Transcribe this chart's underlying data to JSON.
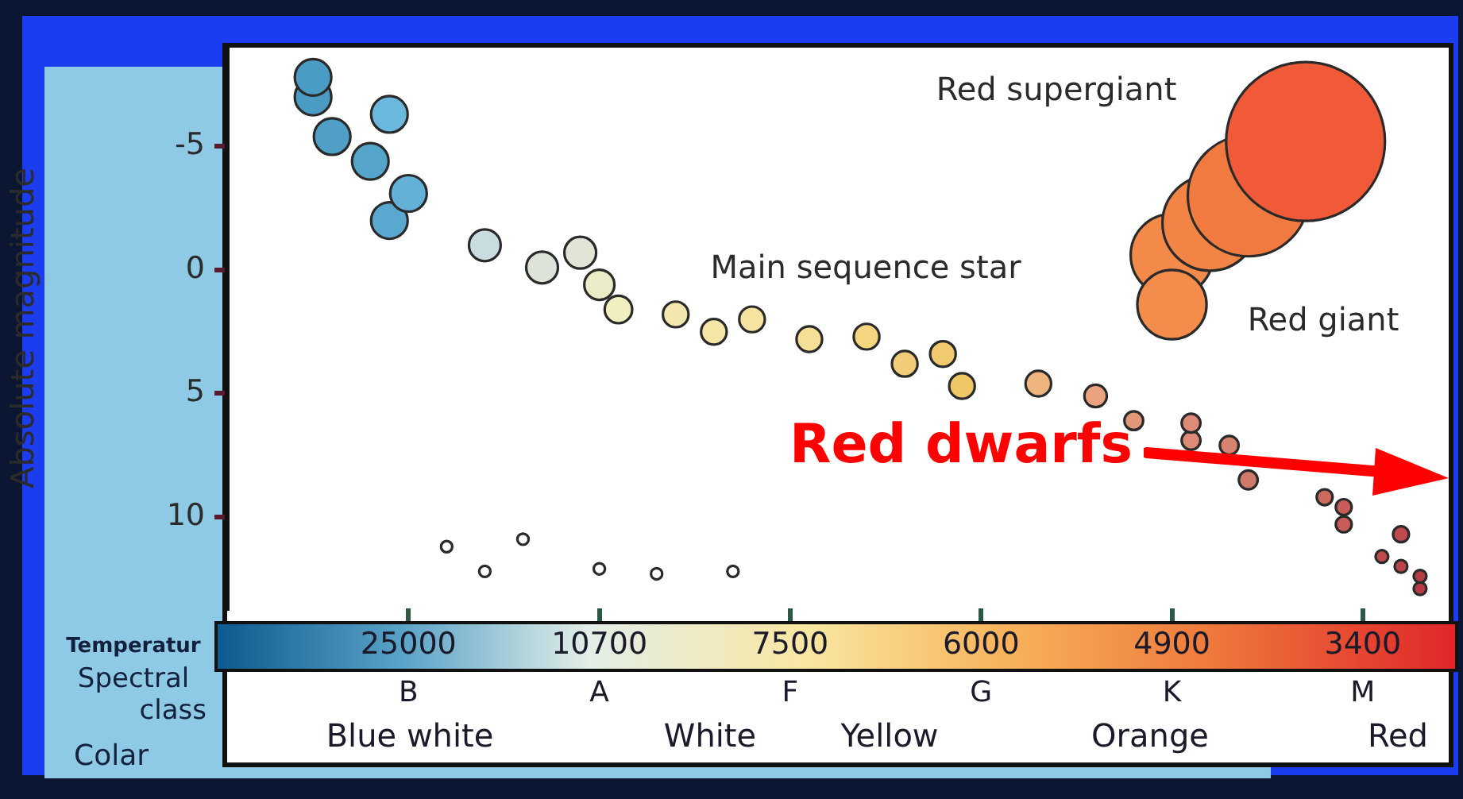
{
  "chart_data": {
    "type": "bubble",
    "ylabel": "Absolute magnitude",
    "xlabel": "Temperatur",
    "categories": [
      null,
      null,
      null,
      null,
      null,
      null,
      null,
      null,
      null,
      "25000",
      null,
      null,
      null,
      null,
      null,
      null,
      null,
      null,
      null,
      "10700",
      null,
      null,
      null,
      null,
      null,
      null,
      null,
      null,
      null,
      "7500",
      null,
      null,
      null,
      null,
      null,
      null,
      null,
      null,
      null,
      "6000",
      null,
      null,
      null,
      null,
      null,
      null,
      null,
      null,
      null,
      "4900",
      null,
      null,
      null,
      null,
      null,
      null,
      null,
      null,
      null,
      "3400",
      null,
      null,
      null,
      null
    ],
    "ylim": [
      13.7,
      -9
    ],
    "yticks": [
      -5,
      0,
      5,
      10
    ],
    "series": [
      {
        "values": [
          null,
          null,
          null,
          null,
          -7.8,
          -5.4,
          null,
          -4.4,
          -6.3,
          -3.1,
          null,
          null,
          null,
          -1.0,
          null,
          null,
          -0.1,
          null,
          -0.7,
          0.6,
          1.6,
          null,
          null,
          1.8,
          null,
          2.5,
          null,
          2.0,
          null,
          null,
          2.8,
          null,
          null,
          2.7,
          null,
          3.8,
          null,
          3.4,
          4.7,
          null,
          null,
          null,
          4.6,
          null,
          null,
          5.1,
          null,
          6.1,
          null,
          null,
          6.2,
          null,
          7.1,
          8.5,
          null,
          null,
          null,
          9.2,
          9.6,
          null,
          11.6,
          10.7,
          12.4,
          null
        ],
        "sizes": [
          null,
          null,
          null,
          null,
          0.053,
          0.053,
          null,
          0.053,
          0.053,
          0.053,
          null,
          null,
          null,
          0.04,
          null,
          null,
          0.04,
          null,
          0.04,
          0.036,
          0.03,
          null,
          null,
          0.026,
          null,
          0.026,
          null,
          0.026,
          null,
          null,
          0.026,
          null,
          null,
          0.026,
          null,
          0.026,
          null,
          0.026,
          0.026,
          null,
          null,
          null,
          0.026,
          null,
          null,
          0.02,
          null,
          0.014,
          null,
          null,
          0.014,
          null,
          0.014,
          0.014,
          null,
          null,
          null,
          0.01,
          0.01,
          null,
          0.0064,
          0.01,
          0.0064,
          null
        ],
        "colors": [
          null,
          null,
          null,
          null,
          "#4b9cc4",
          "#4f9fc6",
          null,
          "#55a5cb",
          "#6ab8dc",
          "#63b1d6",
          null,
          null,
          null,
          "#c9dde0",
          null,
          null,
          "#dde3d8",
          null,
          "#e2e4d6",
          "#ecebc8",
          "#f1eebf",
          null,
          null,
          "#f3e7b0",
          null,
          "#f6e6a6",
          null,
          "#f6e3a0",
          null,
          null,
          "#f5de95",
          null,
          null,
          "#f5d57f",
          null,
          "#f2cd78",
          null,
          "#f1c96e",
          "#f0c766",
          null,
          null,
          null,
          "#eeb67e",
          null,
          null,
          "#eaa27f",
          null,
          "#e29778",
          null,
          null,
          "#dd8a77",
          null,
          "#d8836f",
          "#d07a6a",
          null,
          null,
          null,
          "#cc6a60",
          "#c85c58",
          null,
          "#c04a4c",
          "#c04a4c",
          "#b63c44",
          null
        ]
      },
      {
        "values": [
          null,
          null,
          null,
          null,
          -7.0,
          null,
          null,
          null,
          -2.0,
          null,
          null,
          null,
          null,
          null,
          null,
          null,
          null,
          null,
          null,
          null,
          null,
          null,
          null,
          null,
          null,
          null,
          null,
          null,
          null,
          null,
          null,
          null,
          null,
          null,
          null,
          null,
          null,
          null,
          null,
          null,
          null,
          null,
          null,
          null,
          null,
          null,
          null,
          null,
          null,
          1.4,
          6.9,
          null,
          null,
          null,
          null,
          null,
          null,
          null,
          10.3,
          null,
          null,
          12.0,
          12.9,
          null
        ],
        "sizes": [
          null,
          null,
          null,
          null,
          0.053,
          null,
          null,
          null,
          0.053,
          null,
          null,
          null,
          null,
          null,
          null,
          null,
          null,
          null,
          null,
          null,
          null,
          null,
          null,
          null,
          null,
          null,
          null,
          null,
          null,
          null,
          null,
          null,
          null,
          null,
          null,
          null,
          null,
          null,
          null,
          null,
          null,
          null,
          null,
          null,
          null,
          null,
          null,
          null,
          null,
          0.19,
          0.014,
          null,
          null,
          null,
          null,
          null,
          null,
          null,
          0.01,
          null,
          null,
          0.0064,
          0.0064,
          null
        ],
        "colors": [
          null,
          null,
          null,
          null,
          "#4b9cc4",
          null,
          null,
          null,
          "#5aa8d0",
          null,
          null,
          null,
          null,
          null,
          null,
          null,
          null,
          null,
          null,
          null,
          null,
          null,
          null,
          null,
          null,
          null,
          null,
          null,
          null,
          null,
          null,
          null,
          null,
          null,
          null,
          null,
          null,
          null,
          null,
          null,
          null,
          null,
          null,
          null,
          null,
          null,
          null,
          null,
          null,
          "#f48c4c",
          "#dd8a77",
          null,
          null,
          null,
          null,
          null,
          null,
          null,
          "#c85c58",
          null,
          null,
          "#bb4449",
          "#b63c44",
          null
        ]
      },
      {
        "values": [
          null,
          null,
          null,
          null,
          null,
          null,
          null,
          null,
          null,
          null,
          null,
          null,
          null,
          null,
          null,
          null,
          null,
          null,
          null,
          null,
          null,
          null,
          null,
          null,
          null,
          null,
          null,
          null,
          null,
          null,
          null,
          null,
          null,
          null,
          null,
          null,
          null,
          null,
          null,
          null,
          null,
          null,
          null,
          null,
          null,
          null,
          null,
          null,
          null,
          -0.6,
          null,
          -1.9,
          null,
          -3.0,
          null,
          null,
          -5.2,
          null,
          null,
          null,
          null,
          null,
          null,
          null
        ],
        "sizes": [
          null,
          null,
          null,
          null,
          null,
          null,
          null,
          null,
          null,
          null,
          null,
          null,
          null,
          null,
          null,
          null,
          null,
          null,
          null,
          null,
          null,
          null,
          null,
          null,
          null,
          null,
          null,
          null,
          null,
          null,
          null,
          null,
          null,
          null,
          null,
          null,
          null,
          null,
          null,
          null,
          null,
          null,
          null,
          null,
          null,
          null,
          null,
          null,
          null,
          0.27,
          null,
          0.36,
          null,
          0.58,
          null,
          null,
          1,
          null,
          null,
          null,
          null,
          null,
          null,
          null
        ],
        "colors": [
          null,
          null,
          null,
          null,
          null,
          null,
          null,
          null,
          null,
          null,
          null,
          null,
          null,
          null,
          null,
          null,
          null,
          null,
          null,
          null,
          null,
          null,
          null,
          null,
          null,
          null,
          null,
          null,
          null,
          null,
          null,
          null,
          null,
          null,
          null,
          null,
          null,
          null,
          null,
          null,
          null,
          null,
          null,
          null,
          null,
          null,
          null,
          null,
          null,
          "#f38a4a",
          null,
          "#f28446",
          null,
          "#f07a40",
          null,
          null,
          "#f05a38",
          null,
          null,
          null,
          null,
          null,
          null,
          null
        ]
      },
      {
        "values": [
          null,
          null,
          null,
          null,
          null,
          null,
          null,
          null,
          null,
          null,
          null,
          11.2,
          null,
          12.2,
          null,
          10.9,
          null,
          null,
          null,
          12.1,
          null,
          null,
          12.3,
          null,
          null,
          null,
          12.2,
          null,
          null,
          null,
          null,
          null,
          null,
          null,
          null,
          null,
          null,
          null,
          null,
          null,
          null,
          null,
          null,
          null,
          null,
          null,
          null,
          null,
          null,
          null,
          null,
          null,
          null,
          null,
          null,
          null,
          null,
          null,
          null,
          null,
          null,
          null,
          null,
          null
        ],
        "sizes": [
          null,
          null,
          null,
          null,
          null,
          null,
          null,
          null,
          null,
          null,
          null,
          0.005,
          null,
          0.005,
          null,
          0.005,
          null,
          null,
          null,
          0.005,
          null,
          null,
          0.005,
          null,
          null,
          null,
          0.005,
          null,
          null,
          null,
          null,
          null,
          null,
          null,
          null,
          null,
          null,
          null,
          null,
          null,
          null,
          null,
          null,
          null,
          null,
          null,
          null,
          null,
          null,
          null,
          null,
          null,
          null,
          null,
          null,
          null,
          null,
          null,
          null,
          null,
          null,
          null,
          null,
          null
        ],
        "colors": [
          null,
          null,
          null,
          null,
          null,
          null,
          null,
          null,
          null,
          null,
          null,
          "#ffffff",
          null,
          "#ffffff",
          null,
          "#ffffff",
          null,
          null,
          null,
          "#ffffff",
          null,
          null,
          "#ffffff",
          null,
          null,
          null,
          "#ffffff",
          null,
          null,
          null,
          null,
          null,
          null,
          null,
          null,
          null,
          null,
          null,
          null,
          null,
          null,
          null,
          null,
          null,
          null,
          null,
          null,
          null,
          null,
          null,
          null,
          null,
          null,
          null,
          null,
          null,
          null,
          null,
          null,
          null,
          null,
          null,
          null,
          null
        ]
      }
    ],
    "annotations": [
      "Red supergiant",
      "Main sequence star",
      "Red giant",
      "Red dwarfs",
      "Spectral class",
      "B",
      "A",
      "F",
      "G",
      "K",
      "M",
      "Colar",
      "Blue white",
      "White",
      "Yellow",
      "Orange",
      "Red"
    ]
  }
}
